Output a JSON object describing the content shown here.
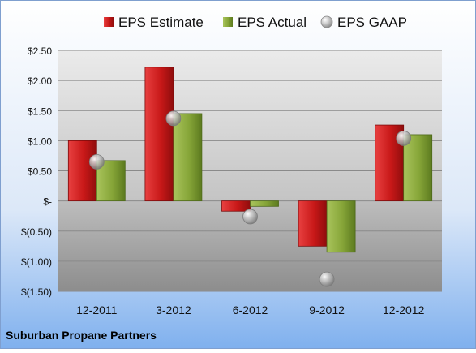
{
  "chart_data": {
    "type": "bar",
    "categories": [
      "12-2011",
      "3-2012",
      "6-2012",
      "9-2012",
      "12-2012"
    ],
    "series": [
      {
        "name": "EPS Estimate",
        "kind": "bar",
        "color": "#cc1f1f",
        "values": [
          1.0,
          2.22,
          -0.17,
          -0.75,
          1.26
        ]
      },
      {
        "name": "EPS Actual",
        "kind": "bar",
        "color": "#88a93a",
        "values": [
          0.67,
          1.45,
          -0.09,
          -0.85,
          1.1
        ]
      },
      {
        "name": "EPS GAAP",
        "kind": "scatter",
        "color": "#a8a8a8",
        "values": [
          0.65,
          1.37,
          -0.26,
          -1.3,
          1.04
        ]
      }
    ],
    "ylim": [
      -1.5,
      2.5
    ],
    "yticks": [
      2.5,
      2.0,
      1.5,
      1.0,
      0.5,
      0,
      -0.5,
      -1.0,
      -1.5
    ],
    "ytick_labels": [
      "$2.50",
      "$2.00",
      "$1.50",
      "$1.00",
      "$0.50",
      "$-",
      "$(0.50)",
      "$(1.00)",
      "$(1.50)"
    ],
    "legend_position": "top",
    "grid": true,
    "footer": "Suburban Propane Partners"
  }
}
